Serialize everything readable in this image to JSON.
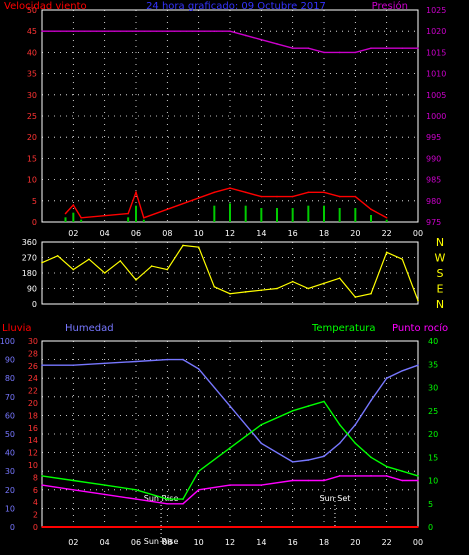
{
  "chart_data": [
    {
      "type": "line",
      "title": "24 hora graficado: 09 Octubre 2017",
      "ylabel_left": "Velocidad viento",
      "ylabel_right": "Presión",
      "x_ticks": [
        "02",
        "04",
        "06",
        "08",
        "10",
        "12",
        "14",
        "16",
        "18",
        "20",
        "22",
        "00"
      ],
      "y_left_ticks": [
        "0",
        "5",
        "10",
        "15",
        "20",
        "25",
        "30",
        "35",
        "40",
        "45",
        "50"
      ],
      "y_right_ticks": [
        "975",
        "980",
        "985",
        "990",
        "995",
        "1000",
        "1005",
        "1010",
        "1015",
        "1020",
        "1025"
      ],
      "ylim_left": [
        0,
        50
      ],
      "ylim_right": [
        975,
        1025
      ],
      "grid": true,
      "colors": {
        "gust": "#ff0000",
        "wind": "#00cc00",
        "avg": "#ffffff",
        "pressure": "#cc00cc"
      },
      "series": [
        {
          "axis": "right",
          "x": [
            0,
            2,
            4,
            6,
            8,
            10,
            11,
            12,
            13,
            14,
            15,
            16,
            17,
            18,
            19,
            20,
            21,
            22,
            23,
            24
          ],
          "values": [
            1020,
            1020,
            1020,
            1020,
            1020,
            1020,
            1020,
            1020,
            1019,
            1018,
            1017,
            1016,
            1016,
            1015,
            1015,
            1015,
            1016,
            1016,
            1016,
            1016
          ]
        },
        {
          "axis": "left",
          "x": [
            1.5,
            2,
            2.5,
            5.5,
            6,
            6.5,
            11,
            12,
            13,
            14,
            15,
            16,
            17,
            18,
            19,
            20,
            21,
            22
          ],
          "values": [
            2,
            4,
            1,
            2,
            7,
            1,
            7,
            8,
            7,
            6,
            6,
            6,
            7,
            7,
            6,
            6,
            3,
            1
          ]
        }
      ]
    },
    {
      "type": "line",
      "y_left_ticks": [
        "0",
        "90",
        "180",
        "270",
        "360"
      ],
      "y_right_ticks": [
        "N",
        "W",
        "S",
        "E",
        "N"
      ],
      "ylim": [
        0,
        360
      ],
      "grid": true,
      "colors": {
        "direction": "#ffff00"
      },
      "series": [
        {
          "x": [
            0,
            1,
            2,
            3,
            4,
            5,
            6,
            7,
            8,
            9,
            10,
            11,
            12,
            13,
            14,
            15,
            16,
            17,
            18,
            19,
            20,
            21,
            22,
            23,
            24
          ],
          "values": [
            240,
            280,
            200,
            260,
            180,
            250,
            140,
            220,
            200,
            340,
            330,
            100,
            60,
            70,
            80,
            90,
            130,
            90,
            120,
            150,
            40,
            60,
            300,
            260,
            20
          ]
        }
      ]
    },
    {
      "type": "line",
      "labels": {
        "rain": "Lluvia",
        "humidity": "Humedad",
        "temperature": "Temperatura",
        "dewpoint": "Punto rocío"
      },
      "annotations": [
        "Sun Rise",
        "Sun Rise",
        "Sun Set"
      ],
      "x_ticks": [
        "02",
        "04",
        "06",
        "08",
        "10",
        "12",
        "14",
        "16",
        "18",
        "20",
        "22",
        "00"
      ],
      "y_humidity_ticks": [
        "0",
        "10",
        "20",
        "30",
        "40",
        "50",
        "60",
        "70",
        "80",
        "90",
        "100"
      ],
      "y_rain_ticks": [
        "0",
        "2",
        "4",
        "6",
        "8",
        "10",
        "12",
        "14",
        "16",
        "18",
        "20",
        "22",
        "24",
        "26",
        "28",
        "30"
      ],
      "y_temp_ticks": [
        "0",
        "5",
        "10",
        "15",
        "20",
        "25",
        "30",
        "35",
        "40"
      ],
      "ylim_humidity": [
        0,
        100
      ],
      "ylim_rain": [
        0,
        30
      ],
      "ylim_temp": [
        0,
        40
      ],
      "grid": true,
      "colors": {
        "rain": "#ff0000",
        "humidity": "#7777ff",
        "temperature": "#00ff00",
        "dewpoint": "#ff00ff"
      },
      "series": [
        {
          "name": "Humedad",
          "axis": "humidity",
          "x": [
            0,
            2,
            4,
            6,
            8,
            9,
            10,
            12,
            14,
            16,
            17,
            18,
            19,
            20,
            21,
            22,
            23,
            24
          ],
          "values": [
            87,
            87,
            88,
            89,
            90,
            90,
            85,
            65,
            45,
            35,
            36,
            38,
            45,
            55,
            68,
            80,
            84,
            87
          ]
        },
        {
          "name": "Temperatura",
          "axis": "temp",
          "x": [
            0,
            2,
            4,
            6,
            8,
            9,
            10,
            12,
            14,
            16,
            17,
            18,
            19,
            20,
            21,
            22,
            23,
            24
          ],
          "values": [
            11,
            10,
            9,
            8,
            6,
            6,
            12,
            17,
            22,
            25,
            26,
            27,
            22,
            18,
            15,
            13,
            12,
            11
          ]
        },
        {
          "name": "Punto rocío",
          "axis": "temp",
          "x": [
            0,
            2,
            4,
            6,
            8,
            9,
            10,
            12,
            14,
            16,
            17,
            18,
            19,
            20,
            21,
            22,
            23,
            24
          ],
          "values": [
            9,
            8,
            7,
            6,
            5,
            5,
            8,
            9,
            9,
            10,
            10,
            10,
            11,
            11,
            11,
            11,
            10,
            10
          ]
        },
        {
          "name": "Lluvia",
          "axis": "rain",
          "x": [
            0,
            24
          ],
          "values": [
            0,
            0
          ]
        }
      ]
    }
  ]
}
